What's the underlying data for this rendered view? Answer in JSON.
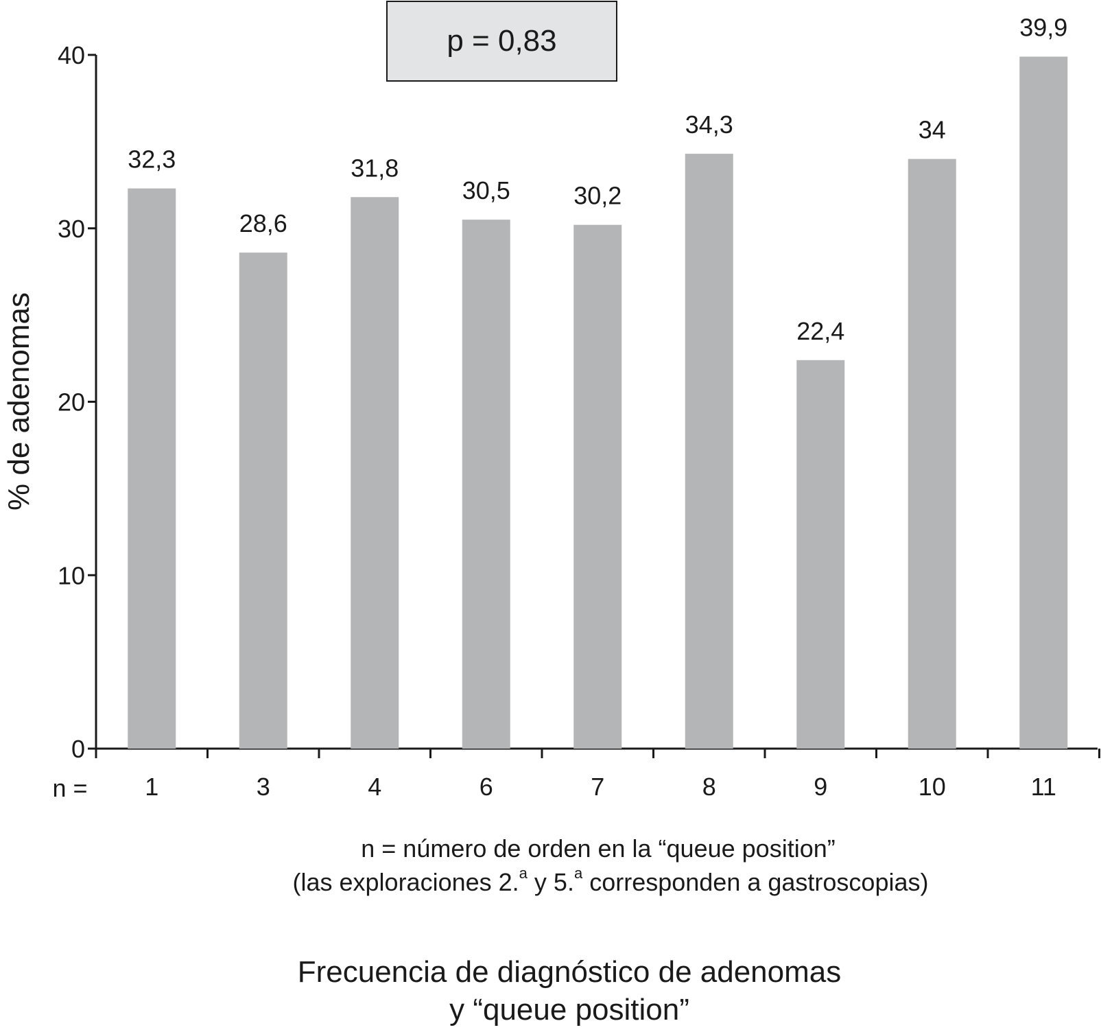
{
  "annotation": "p = 0,83",
  "chart_data": {
    "type": "bar",
    "categories": [
      "1",
      "3",
      "4",
      "6",
      "7",
      "8",
      "9",
      "10",
      "11"
    ],
    "values": [
      32.3,
      28.6,
      31.8,
      30.5,
      30.2,
      34.3,
      22.4,
      34,
      39.9
    ],
    "value_labels": [
      "32,3",
      "28,6",
      "31,8",
      "30,5",
      "30,2",
      "34,3",
      "22,4",
      "34",
      "39,9"
    ],
    "ylabel": "% de adenomas",
    "x_prefix": "n =",
    "ylim": [
      0,
      40
    ],
    "yticks": [
      0,
      10,
      20,
      30,
      40
    ],
    "bar_color": "#b4b5b7",
    "grid": false
  },
  "note": {
    "line1": "n = número de orden en la “queue position”",
    "line2_a": "(las exploraciones 2.",
    "sup1": "a",
    "line2_b": " y 5.",
    "sup2": "a",
    "line2_c": " corresponden a gastroscopias)"
  },
  "title": {
    "line1": "Frecuencia de diagnóstico de adenomas",
    "line2": "y “queue position”"
  }
}
